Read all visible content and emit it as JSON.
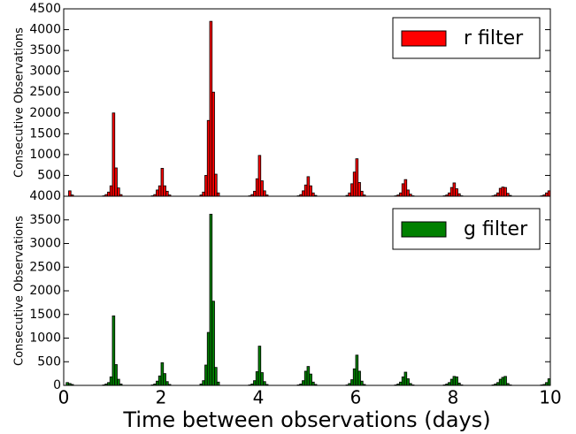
{
  "chart_data": [
    {
      "type": "histogram",
      "ylabel": "Consecutive Observations",
      "bins": [
        0,
        0.05,
        0.1,
        0.15,
        0.2,
        0.25,
        0.3,
        0.35,
        0.4,
        0.45,
        0.5,
        0.55,
        0.6,
        0.65,
        0.7,
        0.75,
        0.8,
        0.85,
        0.9,
        0.95,
        1,
        1.05,
        1.1,
        1.15,
        1.2,
        1.25,
        1.3,
        1.35,
        1.4,
        1.45,
        1.5,
        1.55,
        1.6,
        1.65,
        1.7,
        1.75,
        1.8,
        1.85,
        1.9,
        1.95,
        2,
        2.05,
        2.1,
        2.15,
        2.2,
        2.25,
        2.3,
        2.35,
        2.4,
        2.45,
        2.5,
        2.55,
        2.6,
        2.65,
        2.7,
        2.75,
        2.8,
        2.85,
        2.9,
        2.95,
        3,
        3.05,
        3.1,
        3.15,
        3.2,
        3.25,
        3.3,
        3.35,
        3.4,
        3.45,
        3.5,
        3.55,
        3.6,
        3.65,
        3.7,
        3.75,
        3.8,
        3.85,
        3.9,
        3.95,
        4,
        4.05,
        4.1,
        4.15,
        4.2,
        4.25,
        4.3,
        4.35,
        4.4,
        4.45,
        4.5,
        4.55,
        4.6,
        4.65,
        4.7,
        4.75,
        4.8,
        4.85,
        4.9,
        4.95,
        5,
        5.05,
        5.1,
        5.15,
        5.2,
        5.25,
        5.3,
        5.35,
        5.4,
        5.45,
        5.5,
        5.55,
        5.6,
        5.65,
        5.7,
        5.75,
        5.8,
        5.85,
        5.9,
        5.95,
        6,
        6.05,
        6.1,
        6.15,
        6.2,
        6.25,
        6.3,
        6.35,
        6.4,
        6.45,
        6.5,
        6.55,
        6.6,
        6.65,
        6.7,
        6.75,
        6.8,
        6.85,
        6.9,
        6.95,
        7,
        7.05,
        7.1,
        7.15,
        7.2,
        7.25,
        7.3,
        7.35,
        7.4,
        7.45,
        7.5,
        7.55,
        7.6,
        7.65,
        7.7,
        7.75,
        7.8,
        7.85,
        7.9,
        7.95,
        8,
        8.05,
        8.1,
        8.15,
        8.2,
        8.25,
        8.3,
        8.35,
        8.4,
        8.45,
        8.5,
        8.55,
        8.6,
        8.65,
        8.7,
        8.75,
        8.8,
        8.85,
        8.9,
        8.95,
        9,
        9.05,
        9.1,
        9.15,
        9.2,
        9.25,
        9.3,
        9.35,
        9.4,
        9.45,
        9.5,
        9.55,
        9.6,
        9.65,
        9.7,
        9.75,
        9.8,
        9.85,
        9.9,
        9.95,
        10
      ],
      "series": [
        {
          "name": "r filter",
          "color": "#ff0000",
          "values": [
            0,
            0,
            130,
            30,
            0,
            0,
            0,
            0,
            0,
            0,
            0,
            0,
            0,
            0,
            0,
            0,
            10,
            40,
            100,
            250,
            2000,
            680,
            200,
            40,
            0,
            0,
            0,
            0,
            0,
            0,
            0,
            0,
            0,
            0,
            0,
            0,
            10,
            40,
            150,
            250,
            670,
            250,
            120,
            30,
            0,
            0,
            0,
            0,
            0,
            0,
            0,
            0,
            0,
            0,
            0,
            0,
            30,
            100,
            500,
            1820,
            4200,
            2500,
            530,
            80,
            0,
            0,
            0,
            0,
            0,
            0,
            0,
            0,
            0,
            0,
            0,
            0,
            10,
            40,
            120,
            420,
            980,
            370,
            130,
            30,
            0,
            0,
            0,
            0,
            0,
            0,
            0,
            0,
            0,
            0,
            0,
            0,
            10,
            40,
            130,
            270,
            470,
            250,
            80,
            20,
            0,
            0,
            0,
            0,
            0,
            0,
            0,
            0,
            0,
            0,
            0,
            0,
            20,
            80,
            300,
            580,
            900,
            330,
            120,
            30,
            0,
            0,
            0,
            0,
            0,
            0,
            0,
            0,
            0,
            0,
            0,
            0,
            10,
            30,
            80,
            300,
            400,
            150,
            50,
            10,
            0,
            0,
            0,
            0,
            0,
            0,
            0,
            0,
            0,
            0,
            0,
            0,
            10,
            30,
            80,
            210,
            320,
            180,
            60,
            10,
            0,
            0,
            0,
            0,
            0,
            0,
            0,
            0,
            0,
            0,
            0,
            0,
            10,
            30,
            80,
            190,
            220,
            210,
            70,
            20,
            0,
            0,
            0,
            0,
            0,
            0,
            0,
            0,
            0,
            0,
            0,
            0,
            10,
            30,
            80,
            130
          ]
        }
      ],
      "xlim": [
        0,
        10
      ],
      "ylim": [
        0,
        4500
      ],
      "yticks": [
        500,
        1000,
        1500,
        2000,
        2500,
        3000,
        3500,
        4000,
        4500
      ],
      "legend": "upper right"
    },
    {
      "type": "histogram",
      "ylabel": "Consecutive Observations",
      "xlabel": "Time between observations (days)",
      "bins": [
        0,
        0.05,
        0.1,
        0.15,
        0.2,
        0.25,
        0.3,
        0.35,
        0.4,
        0.45,
        0.5,
        0.55,
        0.6,
        0.65,
        0.7,
        0.75,
        0.8,
        0.85,
        0.9,
        0.95,
        1,
        1.05,
        1.1,
        1.15,
        1.2,
        1.25,
        1.3,
        1.35,
        1.4,
        1.45,
        1.5,
        1.55,
        1.6,
        1.65,
        1.7,
        1.75,
        1.8,
        1.85,
        1.9,
        1.95,
        2,
        2.05,
        2.1,
        2.15,
        2.2,
        2.25,
        2.3,
        2.35,
        2.4,
        2.45,
        2.5,
        2.55,
        2.6,
        2.65,
        2.7,
        2.75,
        2.8,
        2.85,
        2.9,
        2.95,
        3,
        3.05,
        3.1,
        3.15,
        3.2,
        3.25,
        3.3,
        3.35,
        3.4,
        3.45,
        3.5,
        3.55,
        3.6,
        3.65,
        3.7,
        3.75,
        3.8,
        3.85,
        3.9,
        3.95,
        4,
        4.05,
        4.1,
        4.15,
        4.2,
        4.25,
        4.3,
        4.35,
        4.4,
        4.45,
        4.5,
        4.55,
        4.6,
        4.65,
        4.7,
        4.75,
        4.8,
        4.85,
        4.9,
        4.95,
        5,
        5.05,
        5.1,
        5.15,
        5.2,
        5.25,
        5.3,
        5.35,
        5.4,
        5.45,
        5.5,
        5.55,
        5.6,
        5.65,
        5.7,
        5.75,
        5.8,
        5.85,
        5.9,
        5.95,
        6,
        6.05,
        6.1,
        6.15,
        6.2,
        6.25,
        6.3,
        6.35,
        6.4,
        6.45,
        6.5,
        6.55,
        6.6,
        6.65,
        6.7,
        6.75,
        6.8,
        6.85,
        6.9,
        6.95,
        7,
        7.05,
        7.1,
        7.15,
        7.2,
        7.25,
        7.3,
        7.35,
        7.4,
        7.45,
        7.5,
        7.55,
        7.6,
        7.65,
        7.7,
        7.75,
        7.8,
        7.85,
        7.9,
        7.95,
        8,
        8.05,
        8.1,
        8.15,
        8.2,
        8.25,
        8.3,
        8.35,
        8.4,
        8.45,
        8.5,
        8.55,
        8.6,
        8.65,
        8.7,
        8.75,
        8.8,
        8.85,
        8.9,
        8.95,
        9,
        9.05,
        9.1,
        9.15,
        9.2,
        9.25,
        9.3,
        9.35,
        9.4,
        9.45,
        9.5,
        9.55,
        9.6,
        9.65,
        9.7,
        9.75,
        9.8,
        9.85,
        9.9,
        9.95,
        10
      ],
      "series": [
        {
          "name": "g filter",
          "color": "#008000",
          "values": [
            0,
            60,
            40,
            20,
            0,
            0,
            0,
            0,
            0,
            0,
            0,
            0,
            0,
            0,
            0,
            0,
            10,
            30,
            60,
            180,
            1470,
            440,
            130,
            30,
            0,
            0,
            0,
            0,
            0,
            0,
            0,
            0,
            0,
            0,
            0,
            0,
            10,
            30,
            90,
            200,
            480,
            250,
            80,
            20,
            0,
            0,
            0,
            0,
            0,
            0,
            0,
            0,
            0,
            0,
            0,
            0,
            30,
            100,
            430,
            1120,
            3620,
            1780,
            380,
            70,
            0,
            0,
            0,
            0,
            0,
            0,
            0,
            0,
            0,
            0,
            0,
            0,
            10,
            30,
            100,
            290,
            830,
            270,
            80,
            20,
            0,
            0,
            0,
            0,
            0,
            0,
            0,
            0,
            0,
            0,
            0,
            0,
            10,
            30,
            100,
            300,
            400,
            240,
            70,
            20,
            0,
            0,
            0,
            0,
            0,
            0,
            0,
            0,
            0,
            0,
            0,
            0,
            10,
            40,
            120,
            350,
            640,
            300,
            90,
            20,
            0,
            0,
            0,
            0,
            0,
            0,
            0,
            0,
            0,
            0,
            0,
            0,
            10,
            30,
            70,
            180,
            280,
            140,
            40,
            10,
            0,
            0,
            0,
            0,
            0,
            0,
            0,
            0,
            0,
            0,
            0,
            0,
            10,
            30,
            60,
            130,
            190,
            180,
            50,
            10,
            0,
            0,
            0,
            0,
            0,
            0,
            0,
            0,
            0,
            0,
            0,
            0,
            10,
            30,
            60,
            130,
            170,
            190,
            40,
            10,
            0,
            0,
            0,
            0,
            0,
            0,
            0,
            0,
            0,
            0,
            0,
            0,
            10,
            20,
            60,
            140
          ]
        }
      ],
      "xlim": [
        0,
        10
      ],
      "xticks": [
        0,
        2,
        4,
        6,
        8,
        10
      ],
      "ylim": [
        0,
        4000
      ],
      "yticks": [
        0,
        500,
        1000,
        1500,
        2000,
        2500,
        3000,
        3500,
        4000
      ],
      "legend": "upper right"
    }
  ]
}
